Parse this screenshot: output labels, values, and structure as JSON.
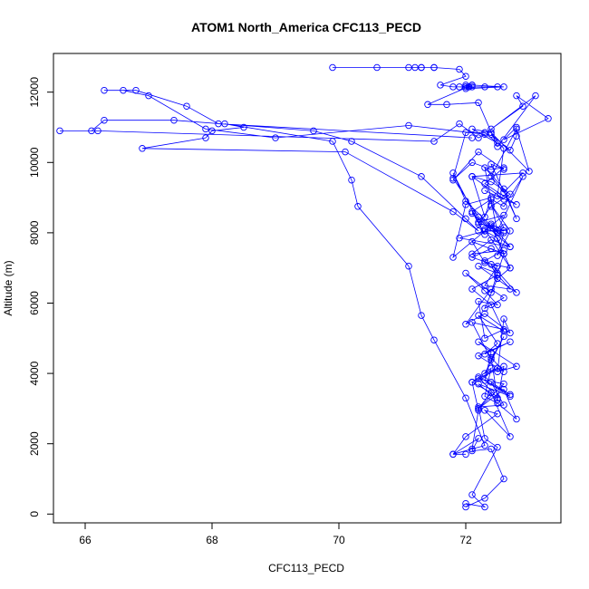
{
  "chart_data": {
    "type": "line",
    "title": "ATOM1 North_America CFC113_PECD",
    "xlabel": "CFC113_PECD",
    "ylabel": "Altitude (m)",
    "xlim": [
      65.5,
      73.5
    ],
    "ylim": [
      -250,
      13100
    ],
    "xticks": [
      66,
      68,
      70,
      72
    ],
    "yticks": [
      0,
      2000,
      4000,
      6000,
      8000,
      10000,
      12000
    ],
    "markers": "open-circle",
    "color": "#0000ff",
    "series": [
      {
        "x": [
          72.0,
          72.3,
          72.6,
          72.4,
          72.1,
          72.2,
          71.8,
          72.0,
          72.5,
          72.3,
          72.7,
          72.4,
          72.2,
          72.6,
          72.8,
          72.5,
          72.3,
          72.4,
          72.1,
          72.6,
          72.5,
          72.2,
          72.7,
          72.3,
          72.4,
          72.2,
          72.8,
          72.5,
          72.6,
          72.7,
          72.3,
          72.0,
          72.4,
          72.6,
          72.3,
          72.5,
          72.4,
          72.8,
          72.2,
          72.5,
          72.3,
          72.6,
          72.1,
          72.4,
          72.7,
          71.9,
          72.3,
          72.5,
          72.2,
          72.6,
          71.8,
          72.0,
          72.4,
          72.3,
          72.1,
          72.9,
          72.6,
          72.4,
          72.8,
          73.0,
          72.4,
          72.1,
          72.5,
          72.3,
          72.0,
          71.8,
          72.2,
          72.5,
          72.9,
          72.6,
          72.4,
          72.1,
          72.3,
          71.8,
          72.0,
          72.4,
          72.7,
          72.5
        ],
        "y": [
          200,
          450,
          1000,
          1850,
          1800,
          2150,
          1700,
          2200,
          2850,
          2950,
          2200,
          3450,
          3000,
          3550,
          2700,
          3150,
          3350,
          4150,
          3750,
          4200,
          3250,
          3700,
          3350,
          3800,
          4600,
          4900,
          4200,
          4050,
          5550,
          5150,
          5700,
          5400,
          6400,
          6150,
          5850,
          6700,
          7100,
          6300,
          7050,
          6850,
          7200,
          7500,
          7400,
          7800,
          7600,
          7850,
          8050,
          8050,
          8300,
          8500,
          7300,
          8800,
          9000,
          8450,
          9600,
          9700,
          9150,
          9600,
          10950,
          9750,
          10850,
          10950,
          10550,
          10850,
          10850,
          9550,
          8450,
          8050,
          9600,
          8750,
          8950,
          8600,
          7950,
          9700,
          8900,
          8200,
          7000,
          6700
        ]
      },
      {
        "x": [
          72.0,
          72.3,
          72.1,
          72.5,
          72.3,
          72.2,
          72.6,
          72.4,
          72.7,
          72.2,
          72.5,
          72.4,
          72.6,
          72.2,
          72.7,
          72.3,
          72.5,
          72.2,
          72.6,
          72.4,
          72.1,
          72.5,
          72.7,
          72.3,
          72.5,
          72.1,
          72.4,
          72.6,
          72.5,
          72.3,
          72.6,
          72.4,
          72.7,
          72.1,
          72.5,
          72.3,
          72.6,
          72.8,
          72.4,
          72.6,
          72.2,
          71.8,
          72.1,
          72.4,
          72.6,
          72.3,
          72.8,
          72.5,
          72.6,
          72.4,
          72.7,
          72.8,
          72.8,
          72.6,
          73.3,
          72.8,
          72.9,
          72.4,
          73.1,
          72.5,
          72.2,
          71.7,
          71.4,
          72.1,
          72.6,
          72.0,
          72.1
        ],
        "y": [
          300,
          200,
          550,
          1900,
          2150,
          3050,
          3100,
          3750,
          3400,
          3900,
          3300,
          4450,
          4050,
          4500,
          4900,
          4550,
          4850,
          5650,
          5200,
          5950,
          6400,
          6800,
          6400,
          6500,
          7050,
          7300,
          7550,
          7400,
          7850,
          8050,
          8050,
          8250,
          7600,
          8550,
          8000,
          9850,
          9250,
          8400,
          9950,
          9800,
          10300,
          9500,
          10000,
          9800,
          9850,
          9400,
          8800,
          9050,
          10400,
          10800,
          10350,
          10750,
          11000,
          10650,
          11250,
          11900,
          11600,
          10950,
          11900,
          10450,
          11700,
          11650,
          11650,
          12200,
          12150,
          12100,
          12200
        ]
      },
      {
        "x": [
          72.1,
          72.2,
          72.1,
          72.4,
          72.2,
          72.6,
          72.2,
          72.5,
          72.3,
          72.6,
          72.4,
          72.1,
          72.6,
          72.3,
          72.2,
          72.5,
          72.3,
          72.0,
          72.4,
          72.6,
          72.1,
          72.3,
          72.7,
          72.3,
          72.6,
          72.5,
          72.7,
          72.4,
          72.6,
          72.2,
          72.4,
          72.7,
          72.4,
          72.1,
          72.6,
          72.3
        ],
        "y": [
          1850,
          2950,
          3750,
          3450,
          3000,
          3700,
          3850,
          4150,
          4000,
          5050,
          4400,
          5450,
          5250,
          5000,
          6050,
          5950,
          6350,
          6850,
          6300,
          7400,
          7750,
          7150,
          7000,
          8100,
          8000,
          7350,
          8050,
          8800,
          8150,
          8250,
          8750,
          9100,
          9450,
          9600,
          8950,
          9200
        ]
      },
      {
        "x": [
          72.0,
          71.8,
          72.3,
          72.0,
          71.5,
          71.3,
          71.1,
          70.3,
          70.2,
          69.9,
          68.2,
          68.5,
          68.0,
          67.9,
          66.9,
          70.1,
          71.8,
          72.2,
          72.0,
          71.3,
          70.2,
          69.6,
          67.4,
          66.3,
          66.1,
          65.6,
          66.2,
          71.5,
          71.9,
          72.2,
          72.3,
          71.1,
          69.0,
          67.9,
          67.0,
          66.6,
          66.3,
          66.8,
          67.6,
          68.1,
          72.1
        ],
        "y": [
          1700,
          1700,
          1950,
          3300,
          4950,
          5650,
          7050,
          8750,
          9500,
          10600,
          11100,
          11000,
          10900,
          10700,
          10400,
          10300,
          8600,
          8050,
          8400,
          9600,
          10600,
          10900,
          11200,
          11200,
          10900,
          10900,
          10900,
          10600,
          11100,
          10700,
          10800,
          11050,
          10700,
          10950,
          11900,
          12050,
          12050,
          12050,
          11600,
          11100,
          10700
        ]
      },
      {
        "x": [
          69.9,
          70.6,
          71.1,
          71.2,
          71.3,
          71.3,
          71.5,
          71.5,
          71.9,
          72.0,
          71.6,
          71.8,
          72.3
        ],
        "y": [
          12700,
          12700,
          12700,
          12700,
          12700,
          12700,
          12700,
          12700,
          12650,
          12450,
          12200,
          12150,
          12150
        ]
      },
      {
        "x": [
          72.0,
          72.05,
          72.0,
          72.1,
          71.9,
          72.0,
          72.05,
          72.5
        ],
        "y": [
          12150,
          12150,
          12200,
          12150,
          12150,
          12150,
          12150,
          12150
        ]
      }
    ]
  }
}
